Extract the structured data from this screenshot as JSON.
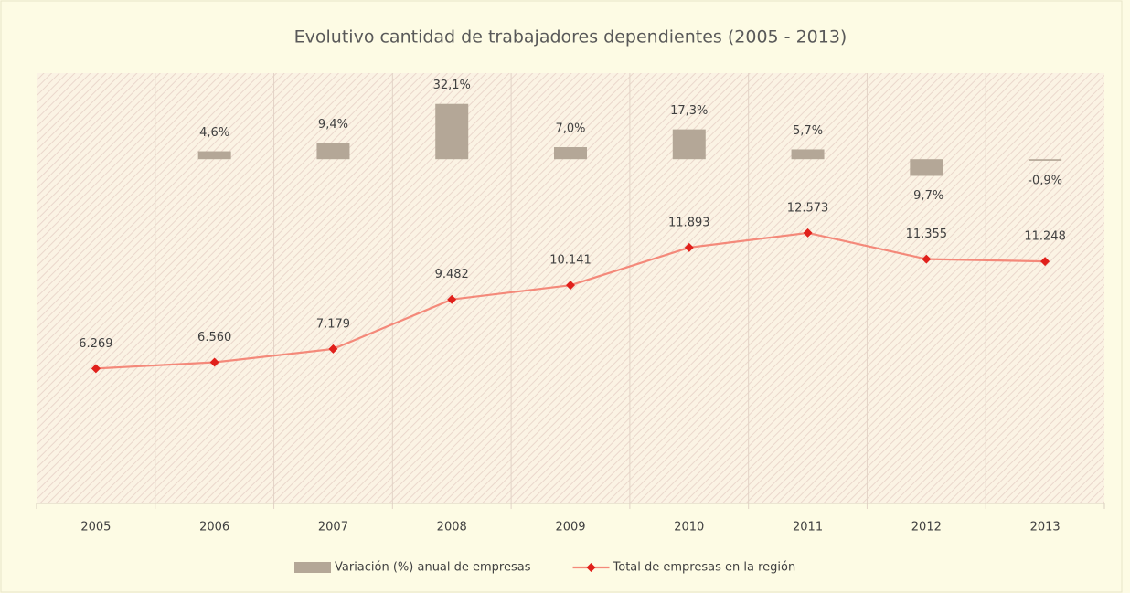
{
  "chart_data": {
    "type": "bar+line",
    "title": "Evolutivo cantidad de trabajadores dependientes (2005 - 2013)",
    "categories": [
      "2005",
      "2006",
      "2007",
      "2008",
      "2009",
      "2010",
      "2011",
      "2012",
      "2013"
    ],
    "ylim": [
      0,
      20000
    ],
    "y2lim": [
      -200,
      50
    ],
    "series": [
      {
        "name": "Variación (%) anual de empresas",
        "type": "bar",
        "axis": "y2",
        "color": "#b4a797",
        "values": [
          null,
          4.6,
          9.4,
          32.1,
          7.0,
          17.3,
          5.7,
          -9.7,
          -0.9
        ],
        "value_labels": [
          null,
          "4,6%",
          "9,4%",
          "32,1%",
          "7,0%",
          "17,3%",
          "5,7%",
          "-9,7%",
          "-0,9%"
        ]
      },
      {
        "name": "Total de empresas en la región",
        "type": "line",
        "color": "#f4897a",
        "marker_color": "#e0201b",
        "values": [
          6269,
          6560,
          7179,
          9482,
          10141,
          11893,
          12573,
          11355,
          11248
        ],
        "value_labels": [
          "6.269",
          "6.560",
          "7.179",
          "9.482",
          "10.141",
          "11.893",
          "12.573",
          "11.355",
          "11.248"
        ]
      }
    ]
  }
}
